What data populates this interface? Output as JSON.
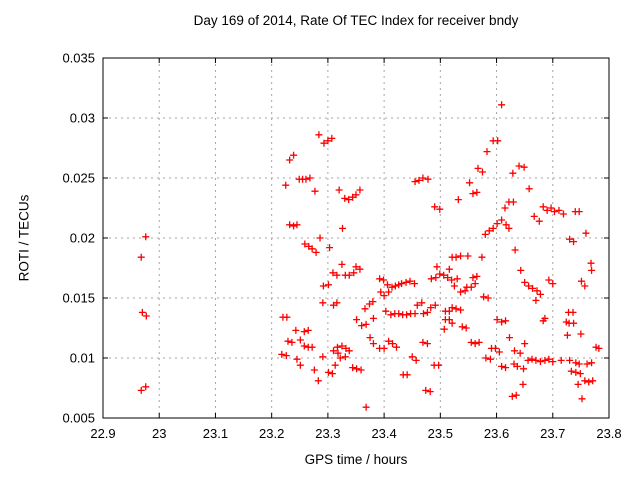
{
  "chart": {
    "title": "Day 169 of 2014, Rate Of TEC Index for receiver bndy",
    "xlabel": "GPS time / hours",
    "ylabel": "ROTI / TECUs"
  },
  "chart_data": {
    "type": "scatter",
    "title": "Day 169 of 2014, Rate Of TEC Index for receiver bndy",
    "xlabel": "GPS time / hours",
    "ylabel": "ROTI / TECUs",
    "xlim": [
      22.9,
      23.8
    ],
    "ylim": [
      0.005,
      0.035
    ],
    "xticks": [
      22.9,
      23.0,
      23.1,
      23.2,
      23.3,
      23.4,
      23.5,
      23.6,
      23.7,
      23.8
    ],
    "xtick_labels": [
      "22.9",
      "23",
      "23.1",
      "23.2",
      "23.3",
      "23.4",
      "23.5",
      "23.6",
      "23.7",
      "23.8"
    ],
    "yticks": [
      0.005,
      0.01,
      0.015,
      0.02,
      0.025,
      0.03,
      0.035
    ],
    "ytick_labels": [
      "0.005",
      "0.01",
      "0.015",
      "0.02",
      "0.025",
      "0.03",
      "0.035"
    ],
    "grid": true,
    "legend": "none",
    "marker": {
      "style": "plus",
      "color": "#ff0000",
      "size": 7
    },
    "colors": {
      "axis": "#000000",
      "grid": "#a6a6a6",
      "background": "#ffffff",
      "text": "#000000"
    },
    "series": [
      {
        "name": "ROTI",
        "points": [
          [
            22.976,
            0.0201
          ],
          [
            22.968,
            0.0184
          ],
          [
            22.97,
            0.0138
          ],
          [
            22.977,
            0.0135
          ],
          [
            22.976,
            0.0076
          ],
          [
            22.968,
            0.0073
          ],
          [
            23.284,
            0.0286
          ],
          [
            23.293,
            0.0279
          ],
          [
            23.3,
            0.0281
          ],
          [
            23.307,
            0.0283
          ],
          [
            23.232,
            0.0265
          ],
          [
            23.239,
            0.0269
          ],
          [
            23.249,
            0.0249
          ],
          [
            23.255,
            0.0249
          ],
          [
            23.261,
            0.0249
          ],
          [
            23.268,
            0.025
          ],
          [
            23.225,
            0.0244
          ],
          [
            23.277,
            0.0239
          ],
          [
            23.232,
            0.0211
          ],
          [
            23.239,
            0.021
          ],
          [
            23.245,
            0.0211
          ],
          [
            23.259,
            0.0195
          ],
          [
            23.266,
            0.0193
          ],
          [
            23.272,
            0.0191
          ],
          [
            23.279,
            0.0188
          ],
          [
            23.286,
            0.02
          ],
          [
            23.303,
            0.0192
          ],
          [
            23.32,
            0.024
          ],
          [
            23.33,
            0.0233
          ],
          [
            23.337,
            0.0232
          ],
          [
            23.344,
            0.0234
          ],
          [
            23.35,
            0.0236
          ],
          [
            23.357,
            0.024
          ],
          [
            23.326,
            0.0208
          ],
          [
            23.325,
            0.0178
          ],
          [
            23.35,
            0.0176
          ],
          [
            23.357,
            0.0174
          ],
          [
            23.309,
            0.0171
          ],
          [
            23.316,
            0.0169
          ],
          [
            23.331,
            0.0169
          ],
          [
            23.338,
            0.0169
          ],
          [
            23.346,
            0.0171
          ],
          [
            23.301,
            0.0161
          ],
          [
            23.292,
            0.016
          ],
          [
            23.392,
            0.0166
          ],
          [
            23.399,
            0.0165
          ],
          [
            23.406,
            0.0161
          ],
          [
            23.414,
            0.0159
          ],
          [
            23.42,
            0.016
          ],
          [
            23.426,
            0.0161
          ],
          [
            23.431,
            0.0162
          ],
          [
            23.439,
            0.0163
          ],
          [
            23.446,
            0.0164
          ],
          [
            23.454,
            0.0162
          ],
          [
            23.394,
            0.0155
          ],
          [
            23.4,
            0.0152
          ],
          [
            23.408,
            0.0155
          ],
          [
            23.403,
            0.0139
          ],
          [
            23.412,
            0.0136
          ],
          [
            23.419,
            0.0137
          ],
          [
            23.426,
            0.0137
          ],
          [
            23.433,
            0.0136
          ],
          [
            23.44,
            0.0136
          ],
          [
            23.447,
            0.0137
          ],
          [
            23.455,
            0.0137
          ],
          [
            23.291,
            0.0146
          ],
          [
            23.31,
            0.0144
          ],
          [
            23.316,
            0.0146
          ],
          [
            23.366,
            0.0141
          ],
          [
            23.374,
            0.0145
          ],
          [
            23.38,
            0.0147
          ],
          [
            23.351,
            0.0132
          ],
          [
            23.36,
            0.0127
          ],
          [
            23.368,
            0.0128
          ],
          [
            23.381,
            0.0133
          ],
          [
            23.375,
            0.0117
          ],
          [
            23.381,
            0.0112
          ],
          [
            23.455,
            0.0247
          ],
          [
            23.462,
            0.0248
          ],
          [
            23.469,
            0.025
          ],
          [
            23.478,
            0.0249
          ],
          [
            23.49,
            0.0226
          ],
          [
            23.499,
            0.0224
          ],
          [
            23.494,
            0.0176
          ],
          [
            23.516,
            0.0174
          ],
          [
            23.484,
            0.0166
          ],
          [
            23.492,
            0.0167
          ],
          [
            23.499,
            0.017
          ],
          [
            23.506,
            0.0169
          ],
          [
            23.513,
            0.0167
          ],
          [
            23.52,
            0.0165
          ],
          [
            23.459,
            0.0144
          ],
          [
            23.467,
            0.0146
          ],
          [
            23.47,
            0.0137
          ],
          [
            23.477,
            0.0138
          ],
          [
            23.483,
            0.0142
          ],
          [
            23.491,
            0.0144
          ],
          [
            23.509,
            0.0139
          ],
          [
            23.516,
            0.0139
          ],
          [
            23.509,
            0.0132
          ],
          [
            23.516,
            0.0132
          ],
          [
            23.507,
            0.0124
          ],
          [
            23.22,
            0.0134
          ],
          [
            23.227,
            0.0134
          ],
          [
            23.243,
            0.0123
          ],
          [
            23.258,
            0.0122
          ],
          [
            23.265,
            0.0123
          ],
          [
            23.229,
            0.0114
          ],
          [
            23.236,
            0.0113
          ],
          [
            23.251,
            0.0115
          ],
          [
            23.258,
            0.011
          ],
          [
            23.265,
            0.0109
          ],
          [
            23.272,
            0.0109
          ],
          [
            23.218,
            0.0103
          ],
          [
            23.226,
            0.0102
          ],
          [
            23.245,
            0.0099
          ],
          [
            23.251,
            0.0094
          ],
          [
            23.276,
            0.009
          ],
          [
            23.283,
            0.0081
          ],
          [
            23.291,
            0.0101
          ],
          [
            23.301,
            0.0088
          ],
          [
            23.308,
            0.0087
          ],
          [
            23.313,
            0.0094
          ],
          [
            23.322,
            0.01
          ],
          [
            23.331,
            0.0101
          ],
          [
            23.317,
            0.0109
          ],
          [
            23.325,
            0.011
          ],
          [
            23.332,
            0.0108
          ],
          [
            23.31,
            0.0106
          ],
          [
            23.318,
            0.0104
          ],
          [
            23.338,
            0.0106
          ],
          [
            23.344,
            0.0092
          ],
          [
            23.351,
            0.0091
          ],
          [
            23.359,
            0.009
          ],
          [
            23.392,
            0.0108
          ],
          [
            23.4,
            0.0108
          ],
          [
            23.368,
            0.0059
          ],
          [
            23.408,
            0.0114
          ],
          [
            23.415,
            0.0112
          ],
          [
            23.422,
            0.0109
          ],
          [
            23.45,
            0.0101
          ],
          [
            23.457,
            0.0098
          ],
          [
            23.469,
            0.0113
          ],
          [
            23.477,
            0.0112
          ],
          [
            23.489,
            0.0094
          ],
          [
            23.497,
            0.0094
          ],
          [
            23.434,
            0.0086
          ],
          [
            23.441,
            0.0086
          ],
          [
            23.474,
            0.0073
          ],
          [
            23.482,
            0.0072
          ],
          [
            23.609,
            0.0311
          ],
          [
            23.594,
            0.0281
          ],
          [
            23.602,
            0.0281
          ],
          [
            23.583,
            0.0272
          ],
          [
            23.567,
            0.0258
          ],
          [
            23.575,
            0.0255
          ],
          [
            23.629,
            0.0254
          ],
          [
            23.64,
            0.026
          ],
          [
            23.649,
            0.0259
          ],
          [
            23.552,
            0.0246
          ],
          [
            23.558,
            0.0237
          ],
          [
            23.565,
            0.0238
          ],
          [
            23.532,
            0.0232
          ],
          [
            23.622,
            0.023
          ],
          [
            23.63,
            0.023
          ],
          [
            23.615,
            0.0225
          ],
          [
            23.58,
            0.0203
          ],
          [
            23.587,
            0.0206
          ],
          [
            23.594,
            0.0208
          ],
          [
            23.601,
            0.0212
          ],
          [
            23.609,
            0.0215
          ],
          [
            23.617,
            0.0211
          ],
          [
            23.622,
            0.0208
          ],
          [
            23.633,
            0.019
          ],
          [
            23.658,
            0.0241
          ],
          [
            23.521,
            0.0184
          ],
          [
            23.528,
            0.0184
          ],
          [
            23.536,
            0.0185
          ],
          [
            23.549,
            0.0185
          ],
          [
            23.574,
            0.0184
          ],
          [
            23.53,
            0.0166
          ],
          [
            23.558,
            0.0167
          ],
          [
            23.565,
            0.0168
          ],
          [
            23.525,
            0.016
          ],
          [
            23.547,
            0.0159
          ],
          [
            23.555,
            0.0159
          ],
          [
            23.562,
            0.0162
          ],
          [
            23.536,
            0.0155
          ],
          [
            23.544,
            0.0156
          ],
          [
            23.577,
            0.0151
          ],
          [
            23.585,
            0.015
          ],
          [
            23.521,
            0.0142
          ],
          [
            23.528,
            0.0141
          ],
          [
            23.536,
            0.014
          ],
          [
            23.521,
            0.0129
          ],
          [
            23.539,
            0.0126
          ],
          [
            23.546,
            0.0125
          ],
          [
            23.555,
            0.0113
          ],
          [
            23.562,
            0.0112
          ],
          [
            23.569,
            0.0113
          ],
          [
            23.581,
            0.01
          ],
          [
            23.589,
            0.0099
          ],
          [
            23.601,
            0.0132
          ],
          [
            23.609,
            0.013
          ],
          [
            23.616,
            0.0131
          ],
          [
            23.591,
            0.0108
          ],
          [
            23.598,
            0.0108
          ],
          [
            23.605,
            0.0105
          ],
          [
            23.623,
            0.0117
          ],
          [
            23.609,
            0.0093
          ],
          [
            23.616,
            0.0092
          ],
          [
            23.631,
            0.0095
          ],
          [
            23.637,
            0.0093
          ],
          [
            23.628,
            0.0068
          ],
          [
            23.635,
            0.0069
          ],
          [
            23.632,
            0.0106
          ],
          [
            23.642,
            0.0104
          ],
          [
            23.65,
            0.0112
          ],
          [
            23.647,
            0.0078
          ],
          [
            23.648,
            0.0091
          ],
          [
            23.683,
            0.0131
          ],
          [
            23.667,
            0.0218
          ],
          [
            23.676,
            0.0214
          ],
          [
            23.683,
            0.0226
          ],
          [
            23.69,
            0.0223
          ],
          [
            23.697,
            0.0225
          ],
          [
            23.703,
            0.0222
          ],
          [
            23.711,
            0.0223
          ],
          [
            23.719,
            0.022
          ],
          [
            23.74,
            0.0222
          ],
          [
            23.747,
            0.0222
          ],
          [
            23.759,
            0.0204
          ],
          [
            23.73,
            0.0199
          ],
          [
            23.737,
            0.0197
          ],
          [
            23.643,
            0.0173
          ],
          [
            23.65,
            0.0163
          ],
          [
            23.657,
            0.016
          ],
          [
            23.664,
            0.0158
          ],
          [
            23.672,
            0.0156
          ],
          [
            23.678,
            0.0153
          ],
          [
            23.693,
            0.0165
          ],
          [
            23.7,
            0.0162
          ],
          [
            23.768,
            0.0179
          ],
          [
            23.769,
            0.0173
          ],
          [
            23.751,
            0.0164
          ],
          [
            23.757,
            0.016
          ],
          [
            23.67,
            0.0148
          ],
          [
            23.686,
            0.0133
          ],
          [
            23.728,
            0.0138
          ],
          [
            23.736,
            0.0138
          ],
          [
            23.724,
            0.013
          ],
          [
            23.729,
            0.0129
          ],
          [
            23.737,
            0.0129
          ],
          [
            23.726,
            0.0119
          ],
          [
            23.75,
            0.012
          ],
          [
            23.777,
            0.0109
          ],
          [
            23.782,
            0.0108
          ],
          [
            23.656,
            0.0098
          ],
          [
            23.663,
            0.0099
          ],
          [
            23.67,
            0.0098
          ],
          [
            23.678,
            0.0097
          ],
          [
            23.686,
            0.0098
          ],
          [
            23.693,
            0.0099
          ],
          [
            23.7,
            0.0097
          ],
          [
            23.715,
            0.0098
          ],
          [
            23.73,
            0.0098
          ],
          [
            23.741,
            0.0096
          ],
          [
            23.747,
            0.0095
          ],
          [
            23.761,
            0.0095
          ],
          [
            23.769,
            0.0096
          ],
          [
            23.733,
            0.0089
          ],
          [
            23.741,
            0.0088
          ],
          [
            23.749,
            0.0087
          ],
          [
            23.757,
            0.0081
          ],
          [
            23.764,
            0.008
          ],
          [
            23.771,
            0.0081
          ],
          [
            23.745,
            0.0078
          ],
          [
            23.752,
            0.0066
          ]
        ]
      }
    ]
  }
}
